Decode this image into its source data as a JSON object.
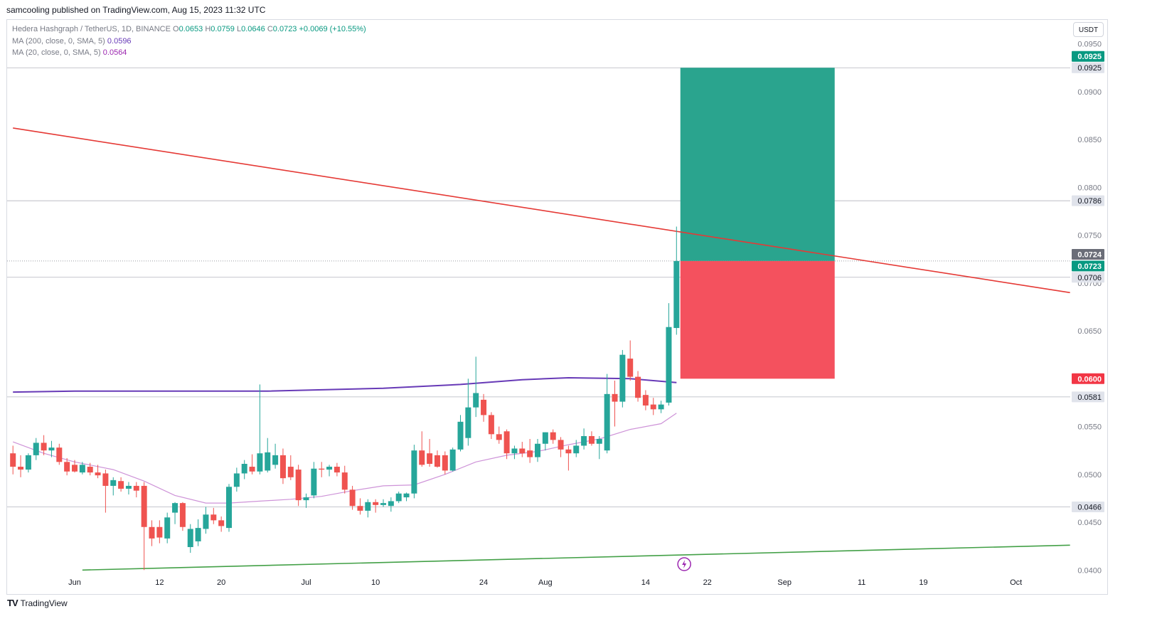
{
  "header": {
    "published_text": "samcooling published on TradingView.com, Aug 15, 2023 11:32 UTC"
  },
  "legend": {
    "symbol": "Hedera Hashgraph / TetherUS, 1D, BINANCE",
    "o_label": "O",
    "o_value": "0.0653",
    "h_label": "H",
    "h_value": "0.0759",
    "l_label": "L",
    "l_value": "0.0646",
    "c_label": "C",
    "c_value": "0.0723",
    "change": "+0.0069 (+10.55%)",
    "ma200_label": "MA (200, close, 0, SMA, 5)",
    "ma200_value": "0.0596",
    "ma20_label": "MA (20, close, 0, SMA, 5)",
    "ma20_value": "0.0564"
  },
  "currency_button": "USDT",
  "footer": {
    "brand": "TradingView",
    "logo": "TV"
  },
  "colors": {
    "up": "#26a69a",
    "down": "#ef5350",
    "ma200": "#673ab7",
    "ma20": "#ce93d8",
    "resistance": "#e53935",
    "support": "#43a047",
    "target_zone": "#2aa48e",
    "stop_zone": "#f4515e"
  },
  "chart_data": {
    "type": "candlestick",
    "ylim": [
      0.0395,
      0.0975
    ],
    "y_ticks": [
      "0.0950",
      "0.0900",
      "0.0850",
      "0.0800",
      "0.0750",
      "0.0700",
      "0.0650",
      "0.0550",
      "0.0500",
      "0.0450",
      "0.0400"
    ],
    "x_ticks": [
      {
        "label": "Jun",
        "day": 0
      },
      {
        "label": "12",
        "day": 11
      },
      {
        "label": "20",
        "day": 19
      },
      {
        "label": "Jul",
        "day": 30
      },
      {
        "label": "10",
        "day": 39
      },
      {
        "label": "24",
        "day": 53
      },
      {
        "label": "Aug",
        "day": 61
      },
      {
        "label": "14",
        "day": 74
      },
      {
        "label": "22",
        "day": 82
      },
      {
        "label": "Sep",
        "day": 92
      },
      {
        "label": "11",
        "day": 102
      },
      {
        "label": "19",
        "day": 110
      },
      {
        "label": "Oct",
        "day": 122
      }
    ],
    "candles": [
      {
        "day": -8,
        "o": 0.0522,
        "h": 0.053,
        "l": 0.05,
        "c": 0.0508
      },
      {
        "day": -7,
        "o": 0.0508,
        "h": 0.052,
        "l": 0.0497,
        "c": 0.0505
      },
      {
        "day": -6,
        "o": 0.0505,
        "h": 0.0522,
        "l": 0.0502,
        "c": 0.052
      },
      {
        "day": -5,
        "o": 0.052,
        "h": 0.0538,
        "l": 0.0515,
        "c": 0.0533
      },
      {
        "day": -4,
        "o": 0.0533,
        "h": 0.0541,
        "l": 0.052,
        "c": 0.0525
      },
      {
        "day": -3,
        "o": 0.0525,
        "h": 0.0535,
        "l": 0.0518,
        "c": 0.0528
      },
      {
        "day": -2,
        "o": 0.0528,
        "h": 0.0532,
        "l": 0.051,
        "c": 0.0513
      },
      {
        "day": -1,
        "o": 0.0513,
        "h": 0.0517,
        "l": 0.0499,
        "c": 0.0503
      },
      {
        "day": 0,
        "o": 0.051,
        "h": 0.0515,
        "l": 0.0502,
        "c": 0.0503
      },
      {
        "day": 1,
        "o": 0.0502,
        "h": 0.0513,
        "l": 0.05,
        "c": 0.051
      },
      {
        "day": 2,
        "o": 0.0508,
        "h": 0.0512,
        "l": 0.0499,
        "c": 0.0502
      },
      {
        "day": 3,
        "o": 0.0502,
        "h": 0.051,
        "l": 0.0496,
        "c": 0.0499
      },
      {
        "day": 4,
        "o": 0.0501,
        "h": 0.0505,
        "l": 0.046,
        "c": 0.0488
      },
      {
        "day": 5,
        "o": 0.0488,
        "h": 0.0497,
        "l": 0.0478,
        "c": 0.0494
      },
      {
        "day": 6,
        "o": 0.0493,
        "h": 0.0497,
        "l": 0.0482,
        "c": 0.0485
      },
      {
        "day": 7,
        "o": 0.0485,
        "h": 0.0492,
        "l": 0.0479,
        "c": 0.0488
      },
      {
        "day": 8,
        "o": 0.0488,
        "h": 0.0492,
        "l": 0.0476,
        "c": 0.0483
      },
      {
        "day": 9,
        "o": 0.0488,
        "h": 0.0492,
        "l": 0.04,
        "c": 0.0445
      },
      {
        "day": 10,
        "o": 0.0445,
        "h": 0.0452,
        "l": 0.0425,
        "c": 0.0433
      },
      {
        "day": 11,
        "o": 0.0445,
        "h": 0.0452,
        "l": 0.0428,
        "c": 0.0434
      },
      {
        "day": 12,
        "o": 0.0433,
        "h": 0.046,
        "l": 0.0428,
        "c": 0.0455
      },
      {
        "day": 13,
        "o": 0.046,
        "h": 0.0471,
        "l": 0.0448,
        "c": 0.047
      },
      {
        "day": 14,
        "o": 0.047,
        "h": 0.0471,
        "l": 0.0441,
        "c": 0.0445
      },
      {
        "day": 15,
        "o": 0.0424,
        "h": 0.0448,
        "l": 0.0418,
        "c": 0.0443
      },
      {
        "day": 16,
        "o": 0.043,
        "h": 0.0453,
        "l": 0.0425,
        "c": 0.0444
      },
      {
        "day": 17,
        "o": 0.0443,
        "h": 0.0466,
        "l": 0.0438,
        "c": 0.0458
      },
      {
        "day": 18,
        "o": 0.0458,
        "h": 0.0465,
        "l": 0.0448,
        "c": 0.0452
      },
      {
        "day": 19,
        "o": 0.0452,
        "h": 0.0456,
        "l": 0.044,
        "c": 0.0446
      },
      {
        "day": 20,
        "o": 0.0444,
        "h": 0.049,
        "l": 0.044,
        "c": 0.0487
      },
      {
        "day": 21,
        "o": 0.0487,
        "h": 0.0507,
        "l": 0.0482,
        "c": 0.0501
      },
      {
        "day": 22,
        "o": 0.0501,
        "h": 0.0515,
        "l": 0.0495,
        "c": 0.0511
      },
      {
        "day": 23,
        "o": 0.0508,
        "h": 0.0521,
        "l": 0.05,
        "c": 0.0503
      },
      {
        "day": 24,
        "o": 0.0503,
        "h": 0.0594,
        "l": 0.05,
        "c": 0.0522
      },
      {
        "day": 25,
        "o": 0.0504,
        "h": 0.0538,
        "l": 0.0502,
        "c": 0.0523
      },
      {
        "day": 26,
        "o": 0.051,
        "h": 0.0532,
        "l": 0.0506,
        "c": 0.052
      },
      {
        "day": 27,
        "o": 0.052,
        "h": 0.0527,
        "l": 0.049,
        "c": 0.0496
      },
      {
        "day": 28,
        "o": 0.0508,
        "h": 0.052,
        "l": 0.0494,
        "c": 0.0497
      },
      {
        "day": 29,
        "o": 0.0505,
        "h": 0.051,
        "l": 0.0467,
        "c": 0.0473
      },
      {
        "day": 30,
        "o": 0.0473,
        "h": 0.048,
        "l": 0.0465,
        "c": 0.0476
      },
      {
        "day": 31,
        "o": 0.0478,
        "h": 0.0513,
        "l": 0.0475,
        "c": 0.0506
      },
      {
        "day": 32,
        "o": 0.0506,
        "h": 0.0513,
        "l": 0.0497,
        "c": 0.0505
      },
      {
        "day": 33,
        "o": 0.0505,
        "h": 0.051,
        "l": 0.0498,
        "c": 0.0508
      },
      {
        "day": 34,
        "o": 0.0508,
        "h": 0.0512,
        "l": 0.0498,
        "c": 0.0502
      },
      {
        "day": 35,
        "o": 0.0502,
        "h": 0.0509,
        "l": 0.048,
        "c": 0.0484
      },
      {
        "day": 36,
        "o": 0.0484,
        "h": 0.0488,
        "l": 0.0463,
        "c": 0.0467
      },
      {
        "day": 37,
        "o": 0.0467,
        "h": 0.0475,
        "l": 0.0458,
        "c": 0.0462
      },
      {
        "day": 38,
        "o": 0.0462,
        "h": 0.0474,
        "l": 0.0455,
        "c": 0.0471
      },
      {
        "day": 39,
        "o": 0.0471,
        "h": 0.0474,
        "l": 0.046,
        "c": 0.0468
      },
      {
        "day": 40,
        "o": 0.0468,
        "h": 0.0474,
        "l": 0.0466,
        "c": 0.047
      },
      {
        "day": 41,
        "o": 0.0467,
        "h": 0.0476,
        "l": 0.0461,
        "c": 0.0472
      },
      {
        "day": 42,
        "o": 0.0472,
        "h": 0.0482,
        "l": 0.047,
        "c": 0.048
      },
      {
        "day": 43,
        "o": 0.0476,
        "h": 0.0481,
        "l": 0.0472,
        "c": 0.048
      },
      {
        "day": 44,
        "o": 0.048,
        "h": 0.0531,
        "l": 0.0475,
        "c": 0.0525
      },
      {
        "day": 45,
        "o": 0.0525,
        "h": 0.0545,
        "l": 0.0508,
        "c": 0.051
      },
      {
        "day": 46,
        "o": 0.0522,
        "h": 0.0537,
        "l": 0.0508,
        "c": 0.0511
      },
      {
        "day": 47,
        "o": 0.052,
        "h": 0.0525,
        "l": 0.0507,
        "c": 0.0508
      },
      {
        "day": 48,
        "o": 0.052,
        "h": 0.0524,
        "l": 0.05,
        "c": 0.0504
      },
      {
        "day": 49,
        "o": 0.0504,
        "h": 0.0528,
        "l": 0.0503,
        "c": 0.0526
      },
      {
        "day": 50,
        "o": 0.0526,
        "h": 0.0562,
        "l": 0.0524,
        "c": 0.0555
      },
      {
        "day": 51,
        "o": 0.0538,
        "h": 0.06,
        "l": 0.053,
        "c": 0.057
      },
      {
        "day": 52,
        "o": 0.057,
        "h": 0.0623,
        "l": 0.056,
        "c": 0.0585
      },
      {
        "day": 53,
        "o": 0.0578,
        "h": 0.0584,
        "l": 0.0555,
        "c": 0.0562
      },
      {
        "day": 54,
        "o": 0.0562,
        "h": 0.0565,
        "l": 0.0537,
        "c": 0.0542
      },
      {
        "day": 55,
        "o": 0.0542,
        "h": 0.055,
        "l": 0.0532,
        "c": 0.0536
      },
      {
        "day": 56,
        "o": 0.0545,
        "h": 0.0547,
        "l": 0.0516,
        "c": 0.0522
      },
      {
        "day": 57,
        "o": 0.0522,
        "h": 0.053,
        "l": 0.0516,
        "c": 0.0527
      },
      {
        "day": 58,
        "o": 0.0527,
        "h": 0.0534,
        "l": 0.0518,
        "c": 0.0522
      },
      {
        "day": 59,
        "o": 0.0525,
        "h": 0.0537,
        "l": 0.0512,
        "c": 0.0518
      },
      {
        "day": 60,
        "o": 0.0518,
        "h": 0.0537,
        "l": 0.0513,
        "c": 0.0532
      },
      {
        "day": 61,
        "o": 0.0532,
        "h": 0.0544,
        "l": 0.0525,
        "c": 0.0544
      },
      {
        "day": 62,
        "o": 0.0544,
        "h": 0.0547,
        "l": 0.0532,
        "c": 0.0536
      },
      {
        "day": 63,
        "o": 0.0536,
        "h": 0.0539,
        "l": 0.0518,
        "c": 0.0526
      },
      {
        "day": 64,
        "o": 0.0526,
        "h": 0.053,
        "l": 0.0504,
        "c": 0.0522
      },
      {
        "day": 65,
        "o": 0.0522,
        "h": 0.0536,
        "l": 0.0518,
        "c": 0.053
      },
      {
        "day": 66,
        "o": 0.053,
        "h": 0.0548,
        "l": 0.0526,
        "c": 0.054
      },
      {
        "day": 67,
        "o": 0.054,
        "h": 0.0545,
        "l": 0.053,
        "c": 0.0532
      },
      {
        "day": 68,
        "o": 0.0532,
        "h": 0.054,
        "l": 0.0516,
        "c": 0.0537
      },
      {
        "day": 69,
        "o": 0.0525,
        "h": 0.0605,
        "l": 0.0522,
        "c": 0.0584
      },
      {
        "day": 70,
        "o": 0.0584,
        "h": 0.0598,
        "l": 0.055,
        "c": 0.0576
      },
      {
        "day": 71,
        "o": 0.0576,
        "h": 0.063,
        "l": 0.057,
        "c": 0.0625
      },
      {
        "day": 72,
        "o": 0.0621,
        "h": 0.064,
        "l": 0.0598,
        "c": 0.0602
      },
      {
        "day": 73,
        "o": 0.0602,
        "h": 0.0608,
        "l": 0.0576,
        "c": 0.058
      },
      {
        "day": 74,
        "o": 0.0583,
        "h": 0.0588,
        "l": 0.0567,
        "c": 0.0572
      },
      {
        "day": 75,
        "o": 0.0573,
        "h": 0.058,
        "l": 0.0562,
        "c": 0.0568
      },
      {
        "day": 76,
        "o": 0.0568,
        "h": 0.0577,
        "l": 0.0564,
        "c": 0.0573
      },
      {
        "day": 77,
        "o": 0.0575,
        "h": 0.0679,
        "l": 0.0572,
        "c": 0.0654
      },
      {
        "day": 78,
        "o": 0.0653,
        "h": 0.0759,
        "l": 0.0646,
        "c": 0.0723
      }
    ],
    "ma200": [
      [
        -8,
        0.0586
      ],
      [
        0,
        0.0587
      ],
      [
        15,
        0.0587
      ],
      [
        25,
        0.0587
      ],
      [
        40,
        0.059
      ],
      [
        50,
        0.0594
      ],
      [
        58,
        0.0599
      ],
      [
        64,
        0.0601
      ],
      [
        72,
        0.06
      ],
      [
        78,
        0.0596
      ]
    ],
    "ma20": [
      [
        -8,
        0.0534
      ],
      [
        -4,
        0.0522
      ],
      [
        0,
        0.0513
      ],
      [
        5,
        0.0505
      ],
      [
        9,
        0.0493
      ],
      [
        13,
        0.0478
      ],
      [
        17,
        0.047
      ],
      [
        20,
        0.047
      ],
      [
        24,
        0.0472
      ],
      [
        28,
        0.0474
      ],
      [
        32,
        0.0477
      ],
      [
        36,
        0.0483
      ],
      [
        40,
        0.0488
      ],
      [
        44,
        0.0489
      ],
      [
        48,
        0.05
      ],
      [
        52,
        0.0513
      ],
      [
        56,
        0.052
      ],
      [
        60,
        0.0524
      ],
      [
        64,
        0.0531
      ],
      [
        68,
        0.0537
      ],
      [
        72,
        0.0547
      ],
      [
        76,
        0.0553
      ],
      [
        78,
        0.0564
      ]
    ],
    "resistance_line": {
      "x1": -8,
      "y1": 0.0862,
      "x2": 129,
      "y2": 0.069
    },
    "support_line": {
      "x1": 1,
      "y1": 0.04,
      "x2": 129,
      "y2": 0.0426
    },
    "horizontal_levels": [
      {
        "value": 0.0925,
        "label": "0.0925"
      },
      {
        "value": 0.0786,
        "label": "0.0786"
      },
      {
        "value": 0.0706,
        "label": "0.0706"
      },
      {
        "value": 0.0581,
        "label": "0.0581"
      },
      {
        "value": 0.0466,
        "label": "0.0466"
      }
    ],
    "position": {
      "entry": 0.0723,
      "target": 0.0925,
      "stop": 0.06,
      "from_day": 78.5,
      "to_day": 98.5
    },
    "price_tags": [
      {
        "value": 0.0925,
        "label": "0.0925",
        "style": "green"
      },
      {
        "value": 0.0724,
        "label": "0.0724",
        "style": "gray"
      },
      {
        "value": 0.0723,
        "label": "0.0723",
        "style": "green"
      },
      {
        "value": 0.06,
        "label": "0.0600",
        "style": "red"
      }
    ],
    "event_marker_day": 79
  }
}
